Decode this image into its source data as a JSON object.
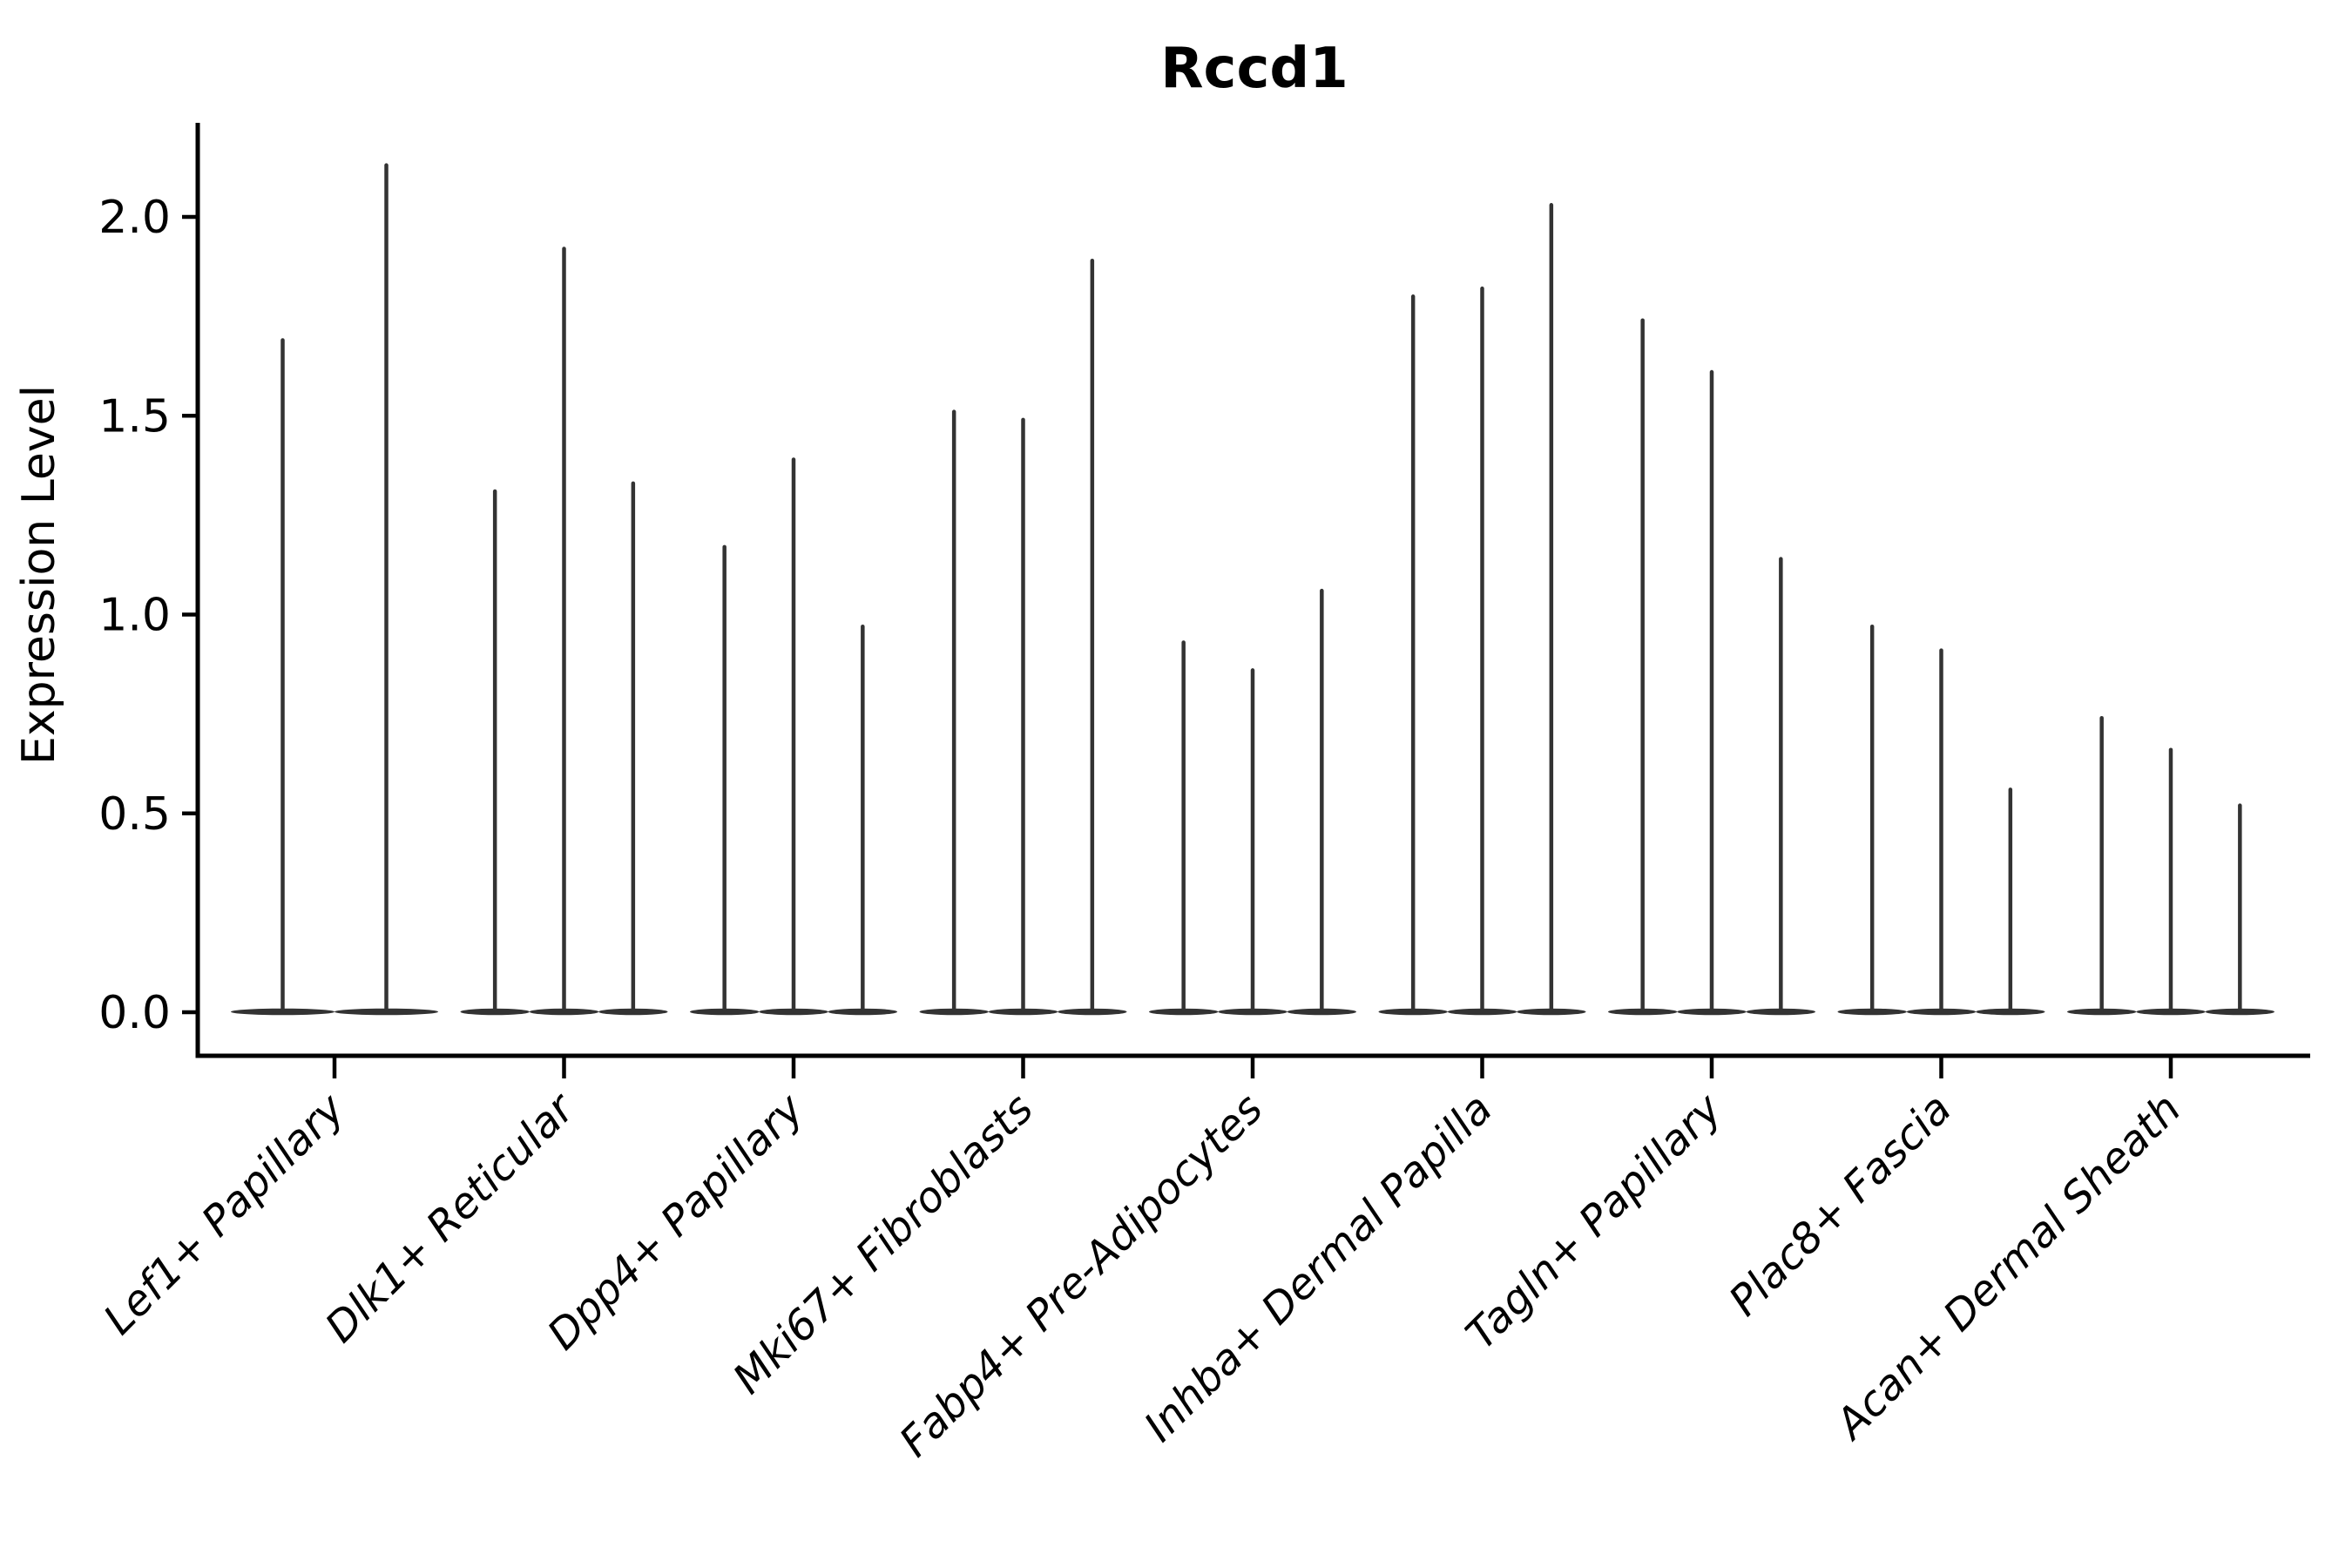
{
  "title": "Rccd1",
  "chart_data": {
    "type": "violin",
    "title": "Rccd1",
    "xlabel": "",
    "ylabel": "Expression Level",
    "ylim": [
      0,
      2.27
    ],
    "grid": false,
    "legend": null,
    "ytick_labels": [
      "0.0",
      "0.5",
      "1.0",
      "1.5",
      "2.0"
    ],
    "categories": [
      "Lef1+ Papillary",
      "Dlk1+ Reticular",
      "Dpp4+ Papillary",
      "Mki67+ Fibroblasts",
      "Fabp4+ Pre-Adipocytes",
      "Inhba+ Dermal Papilla",
      "Tagln+ Papillary",
      "Plac8+ Fascia",
      "Acan+ Dermal Sheath"
    ],
    "series": [
      {
        "category": "Lef1+ Papillary",
        "violin_max_values": [
          1.69,
          2.13
        ]
      },
      {
        "category": "Dlk1+ Reticular",
        "violin_max_values": [
          1.31,
          1.92,
          1.33
        ]
      },
      {
        "category": "Dpp4+ Papillary",
        "violin_max_values": [
          1.17,
          1.39,
          0.97
        ]
      },
      {
        "category": "Mki67+ Fibroblasts",
        "violin_max_values": [
          1.51,
          1.49,
          1.89
        ]
      },
      {
        "category": "Fabp4+ Pre-Adipocytes",
        "violin_max_values": [
          0.93,
          0.86,
          1.06
        ]
      },
      {
        "category": "Inhba+ Dermal Papilla",
        "violin_max_values": [
          1.8,
          1.82,
          2.03
        ]
      },
      {
        "category": "Tagln+ Papillary",
        "violin_max_values": [
          1.74,
          1.61,
          1.14
        ]
      },
      {
        "category": "Plac8+ Fascia",
        "violin_max_values": [
          0.97,
          0.91,
          0.56
        ]
      },
      {
        "category": "Acan+ Dermal Sheath",
        "violin_max_values": [
          0.74,
          0.66,
          0.52
        ]
      }
    ],
    "style_note": "Each violin is extremely thin: a wide flat density lens at expression 0 plus a hairline vertical spike reaching its max value.",
    "colors": {
      "violin": "#333333",
      "axis": "#000000",
      "text": "#000000",
      "background": "#ffffff"
    }
  }
}
